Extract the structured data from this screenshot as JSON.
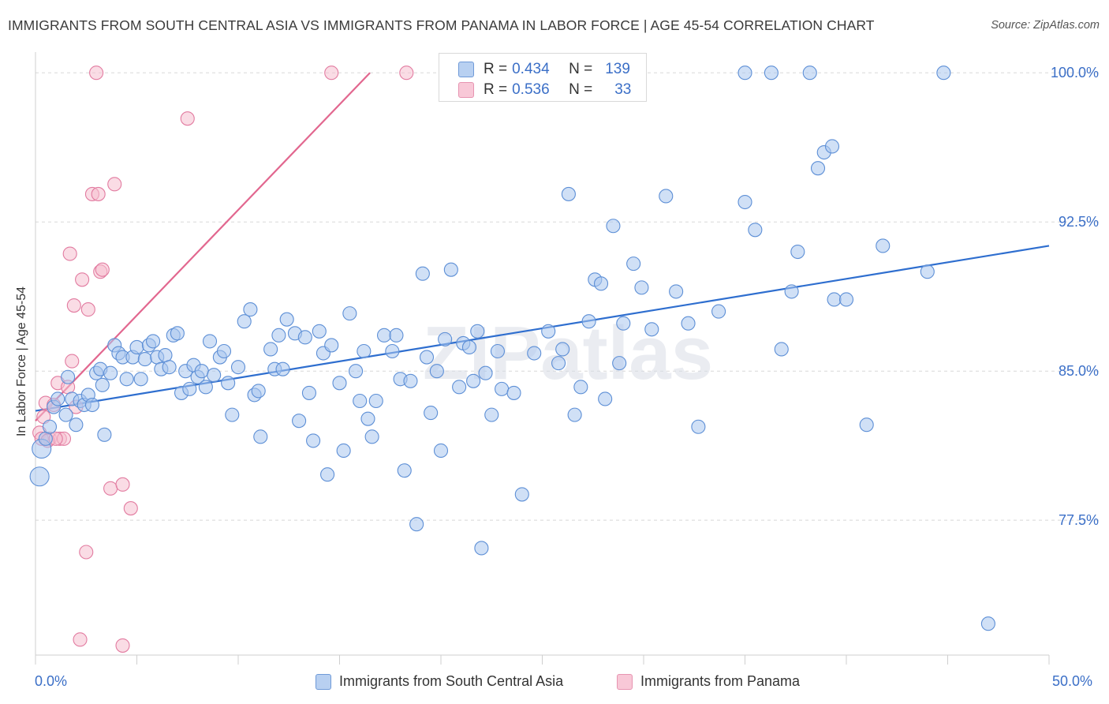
{
  "title": "IMMIGRANTS FROM SOUTH CENTRAL ASIA VS IMMIGRANTS FROM PANAMA IN LABOR FORCE | AGE 45-54 CORRELATION CHART",
  "source": "Source: ZipAtlas.com",
  "watermark": "ZIPatlas",
  "colors": {
    "blue_fill": "#a9c6ee",
    "blue_stroke": "#5d8fd6",
    "blue_line": "#2e6ecf",
    "pink_fill": "#f6bfd0",
    "pink_stroke": "#e27ba0",
    "pink_line": "#e2678f",
    "axis_text": "#3b6fc7",
    "grid": "#d8d8d8"
  },
  "legend": {
    "blue": {
      "r_label": "R =",
      "r_value": "0.434",
      "n_label": "N =",
      "n_value": "139"
    },
    "pink": {
      "r_label": "R =",
      "r_value": "0.536",
      "n_label": "N =",
      "n_value": "33"
    }
  },
  "chart_data": {
    "type": "scatter",
    "title": "IMMIGRANTS FROM SOUTH CENTRAL ASIA VS IMMIGRANTS FROM PANAMA IN LABOR FORCE | AGE 45-54 CORRELATION CHART",
    "xlabel": "",
    "ylabel": "In Labor Force | Age 45-54",
    "xlim": [
      0,
      50
    ],
    "ylim": [
      70.8,
      101.2
    ],
    "x_tick_labels": [
      "0.0%",
      "50.0%"
    ],
    "y_ticks": [
      77.5,
      85.0,
      92.5,
      100.0
    ],
    "y_tick_labels": [
      "77.5%",
      "85.0%",
      "92.5%",
      "100.0%"
    ],
    "grid": true,
    "legend_position": "top-center",
    "series": [
      {
        "name": "Immigrants from South Central Asia",
        "color": "#a9c6ee",
        "trend": {
          "x": [
            0,
            50
          ],
          "y": [
            83.0,
            91.3
          ]
        },
        "points": [
          [
            0.3,
            81.1
          ],
          [
            0.5,
            81.6
          ],
          [
            0.7,
            82.2
          ],
          [
            0.9,
            83.2
          ],
          [
            1.1,
            83.6
          ],
          [
            1.5,
            82.8
          ],
          [
            1.6,
            84.7
          ],
          [
            1.8,
            83.6
          ],
          [
            2.0,
            82.3
          ],
          [
            2.2,
            83.5
          ],
          [
            2.4,
            83.3
          ],
          [
            2.6,
            83.8
          ],
          [
            2.8,
            83.3
          ],
          [
            3.0,
            84.9
          ],
          [
            3.2,
            85.1
          ],
          [
            3.3,
            84.3
          ],
          [
            3.4,
            81.8
          ],
          [
            3.7,
            84.9
          ],
          [
            3.9,
            86.3
          ],
          [
            4.1,
            85.9
          ],
          [
            4.3,
            85.7
          ],
          [
            4.5,
            84.6
          ],
          [
            4.8,
            85.7
          ],
          [
            5.0,
            86.2
          ],
          [
            5.2,
            84.6
          ],
          [
            5.4,
            85.6
          ],
          [
            5.6,
            86.3
          ],
          [
            5.8,
            86.5
          ],
          [
            6.0,
            85.7
          ],
          [
            6.2,
            85.1
          ],
          [
            6.4,
            85.8
          ],
          [
            6.6,
            85.2
          ],
          [
            6.8,
            86.8
          ],
          [
            7.0,
            86.9
          ],
          [
            7.2,
            83.9
          ],
          [
            7.4,
            85.0
          ],
          [
            7.6,
            84.1
          ],
          [
            7.8,
            85.3
          ],
          [
            8.0,
            84.7
          ],
          [
            8.2,
            85.0
          ],
          [
            8.4,
            84.2
          ],
          [
            8.6,
            86.5
          ],
          [
            8.8,
            84.8
          ],
          [
            9.1,
            85.7
          ],
          [
            9.3,
            86.0
          ],
          [
            9.5,
            84.4
          ],
          [
            9.7,
            82.8
          ],
          [
            10.0,
            85.2
          ],
          [
            10.3,
            87.5
          ],
          [
            10.6,
            88.1
          ],
          [
            10.8,
            83.8
          ],
          [
            11.0,
            84.0
          ],
          [
            11.1,
            81.7
          ],
          [
            11.6,
            86.1
          ],
          [
            11.8,
            85.1
          ],
          [
            12.0,
            86.8
          ],
          [
            12.2,
            85.1
          ],
          [
            12.4,
            87.6
          ],
          [
            12.8,
            86.9
          ],
          [
            13.0,
            82.5
          ],
          [
            13.3,
            86.7
          ],
          [
            13.5,
            83.9
          ],
          [
            13.7,
            81.5
          ],
          [
            14.0,
            87.0
          ],
          [
            14.2,
            85.9
          ],
          [
            14.4,
            79.8
          ],
          [
            14.6,
            86.3
          ],
          [
            15.0,
            84.4
          ],
          [
            15.2,
            81.0
          ],
          [
            15.5,
            87.9
          ],
          [
            15.8,
            85.0
          ],
          [
            16.0,
            83.5
          ],
          [
            16.2,
            86.0
          ],
          [
            16.4,
            82.6
          ],
          [
            16.6,
            81.7
          ],
          [
            16.8,
            83.5
          ],
          [
            17.2,
            86.8
          ],
          [
            17.6,
            86.0
          ],
          [
            17.8,
            86.8
          ],
          [
            18.0,
            84.6
          ],
          [
            18.2,
            80.0
          ],
          [
            18.5,
            84.5
          ],
          [
            18.8,
            77.3
          ],
          [
            19.1,
            89.9
          ],
          [
            19.3,
            85.7
          ],
          [
            19.5,
            82.9
          ],
          [
            19.8,
            85.0
          ],
          [
            20.0,
            81.0
          ],
          [
            20.2,
            86.6
          ],
          [
            20.5,
            90.1
          ],
          [
            20.9,
            84.2
          ],
          [
            21.1,
            86.4
          ],
          [
            21.4,
            86.2
          ],
          [
            21.6,
            84.5
          ],
          [
            21.8,
            87.0
          ],
          [
            22.0,
            76.1
          ],
          [
            22.2,
            84.9
          ],
          [
            22.5,
            82.8
          ],
          [
            22.8,
            86.0
          ],
          [
            23.0,
            84.1
          ],
          [
            23.6,
            83.9
          ],
          [
            24.0,
            78.8
          ],
          [
            24.6,
            85.9
          ],
          [
            25.3,
            87.0
          ],
          [
            25.8,
            85.4
          ],
          [
            26.0,
            86.1
          ],
          [
            26.3,
            93.9
          ],
          [
            26.6,
            82.8
          ],
          [
            26.9,
            84.2
          ],
          [
            27.3,
            87.5
          ],
          [
            27.6,
            89.6
          ],
          [
            27.9,
            89.4
          ],
          [
            28.1,
            83.6
          ],
          [
            28.5,
            92.3
          ],
          [
            29.0,
            87.4
          ],
          [
            29.5,
            90.4
          ],
          [
            29.9,
            89.2
          ],
          [
            30.4,
            87.1
          ],
          [
            31.1,
            93.8
          ],
          [
            31.6,
            89.0
          ],
          [
            32.2,
            87.4
          ],
          [
            32.7,
            82.2
          ],
          [
            33.7,
            88.0
          ],
          [
            35.0,
            93.5
          ],
          [
            35.5,
            92.1
          ],
          [
            35.0,
            100.0
          ],
          [
            36.3,
            100.0
          ],
          [
            36.8,
            86.1
          ],
          [
            37.3,
            89.0
          ],
          [
            37.6,
            91.0
          ],
          [
            38.6,
            95.2
          ],
          [
            38.9,
            96.0
          ],
          [
            39.3,
            96.3
          ],
          [
            39.4,
            88.6
          ],
          [
            40.0,
            88.6
          ],
          [
            41.0,
            82.3
          ],
          [
            41.8,
            91.3
          ],
          [
            44.0,
            90.0
          ],
          [
            47.0,
            72.3
          ],
          [
            38.2,
            100.0
          ],
          [
            44.8,
            100.0
          ],
          [
            0.2,
            79.7
          ],
          [
            28.8,
            85.4
          ]
        ]
      },
      {
        "name": "Immigrants from Panama",
        "color": "#f6bfd0",
        "trend": {
          "x": [
            0,
            16.5
          ],
          "y": [
            82.5,
            100.0
          ]
        },
        "points": [
          [
            0.2,
            81.9
          ],
          [
            0.4,
            82.7
          ],
          [
            0.5,
            83.4
          ],
          [
            0.7,
            81.6
          ],
          [
            0.9,
            83.3
          ],
          [
            1.1,
            84.4
          ],
          [
            1.2,
            81.6
          ],
          [
            1.4,
            81.6
          ],
          [
            1.6,
            84.2
          ],
          [
            1.7,
            90.9
          ],
          [
            1.8,
            85.5
          ],
          [
            1.9,
            88.3
          ],
          [
            2.0,
            83.2
          ],
          [
            2.3,
            89.6
          ],
          [
            2.6,
            88.1
          ],
          [
            2.8,
            93.9
          ],
          [
            3.1,
            93.9
          ],
          [
            3.2,
            90.0
          ],
          [
            3.3,
            90.1
          ],
          [
            3.9,
            94.4
          ],
          [
            2.5,
            75.9
          ],
          [
            3.7,
            79.1
          ],
          [
            4.3,
            79.3
          ],
          [
            4.7,
            78.1
          ],
          [
            2.2,
            71.5
          ],
          [
            4.3,
            71.2
          ],
          [
            3.0,
            100.0
          ],
          [
            14.6,
            100.0
          ],
          [
            18.3,
            100.0
          ],
          [
            7.5,
            97.7
          ],
          [
            0.3,
            81.6
          ],
          [
            0.6,
            81.5
          ],
          [
            1.0,
            81.6
          ]
        ]
      }
    ]
  }
}
